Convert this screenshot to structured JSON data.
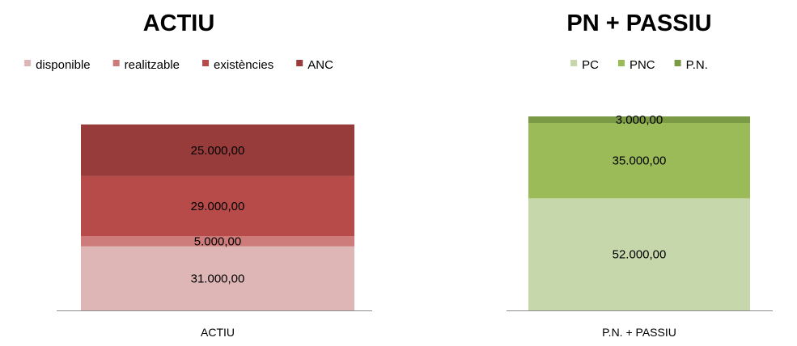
{
  "chart_data": [
    {
      "type": "bar",
      "stacked": true,
      "title": "ACTIU",
      "categories": [
        "ACTIU"
      ],
      "series": [
        {
          "name": "disponible",
          "values": [
            31000
          ],
          "label": "31.000,00",
          "color": "#dfb6b6"
        },
        {
          "name": "realitzable",
          "values": [
            5000
          ],
          "label": "5.000,00",
          "color": "#cd7b7b"
        },
        {
          "name": "existències",
          "values": [
            29000
          ],
          "label": "29.000,00",
          "color": "#b64b4a"
        },
        {
          "name": "ANC",
          "values": [
            25000
          ],
          "label": "25.000,00",
          "color": "#983b3b"
        }
      ],
      "legend_position": "top",
      "ylim": [
        0,
        90000
      ],
      "grid": false
    },
    {
      "type": "bar",
      "stacked": true,
      "title": "PN + PASSIU",
      "categories": [
        "P.N. + PASSIU"
      ],
      "series": [
        {
          "name": "PC",
          "values": [
            52000
          ],
          "label": "52.000,00",
          "color": "#c6d8ab"
        },
        {
          "name": "PNC",
          "values": [
            35000
          ],
          "label": "35.000,00",
          "color": "#9bbb59"
        },
        {
          "name": "P.N.",
          "values": [
            3000
          ],
          "label": "3.000,00",
          "color": "#7b9a45"
        }
      ],
      "legend_position": "top",
      "ylim": [
        0,
        90000
      ],
      "grid": false
    }
  ]
}
